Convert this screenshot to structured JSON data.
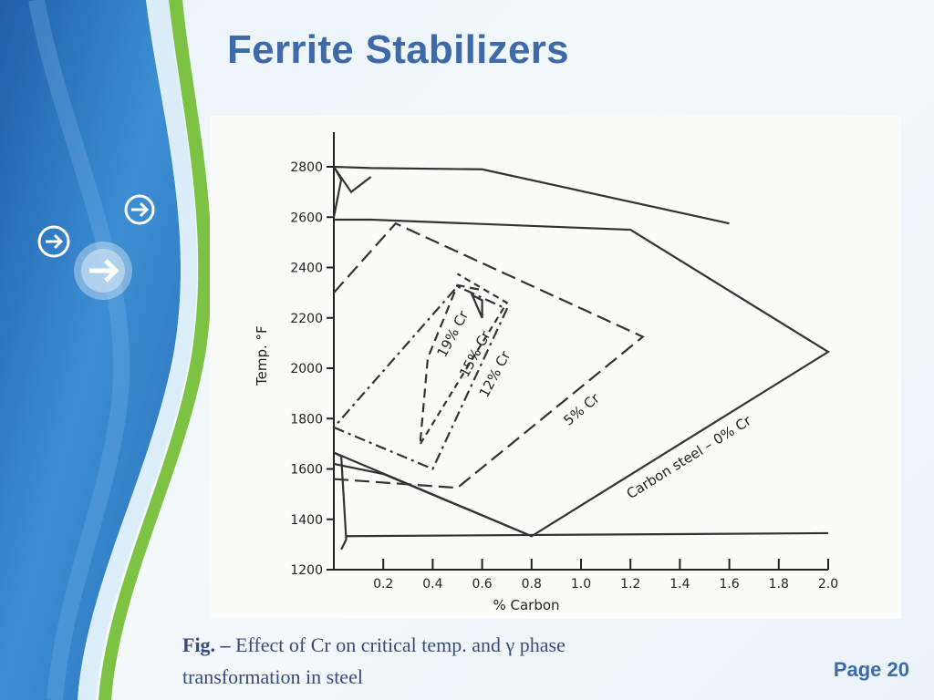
{
  "slide": {
    "title": "Ferrite Stabilizers",
    "caption_prefix": "Fig. –",
    "caption_line1": " Effect of Cr on critical temp. and γ phase",
    "caption_line2": "transformation in steel",
    "page_label": "Page 20"
  },
  "theme": {
    "title_color": "#3e6aaa",
    "side_blue": "#2f7cc4",
    "side_green": "#7dc242"
  },
  "side_icons": [
    "arrow-right-circle-icon",
    "arrow-right-circle-icon",
    "arrow-right-circle-icon"
  ],
  "chart_data": {
    "type": "diagram",
    "xlabel": "% Carbon",
    "ylabel": "Temp. °F",
    "x_ticks": [
      "0.2",
      "0.4",
      "0.6",
      "0.8",
      "1.0",
      "1.2",
      "1.4",
      "1.6",
      "1.8",
      "2.0"
    ],
    "y_ticks": [
      "1200",
      "1400",
      "1600",
      "1800",
      "2000",
      "2200",
      "2400",
      "2600",
      "2800"
    ],
    "xlim": [
      0,
      2.0
    ],
    "ylim": [
      1200,
      2800
    ],
    "series": [
      {
        "name": "Carbon steel – 0% Cr",
        "style": "solid",
        "points": [
          [
            0,
            1665
          ],
          [
            0.8,
            1333
          ],
          [
            2.0,
            2065
          ],
          [
            1.2,
            2550
          ],
          [
            0.15,
            2590
          ],
          [
            0,
            2590
          ]
        ]
      },
      {
        "name": "5% Cr",
        "style": "long-dash",
        "points": [
          [
            0,
            2300
          ],
          [
            0.25,
            2575
          ],
          [
            1.25,
            2125
          ],
          [
            0.5,
            1525
          ],
          [
            0,
            1560
          ]
        ]
      },
      {
        "name": "12% Cr",
        "style": "dash-dot",
        "points": [
          [
            0,
            1765
          ],
          [
            0.4,
            1600
          ],
          [
            0.7,
            2235
          ],
          [
            0.5,
            2325
          ],
          [
            0,
            1765
          ]
        ]
      },
      {
        "name": "15% Cr",
        "style": "short-dash",
        "points": [
          [
            0.35,
            1700
          ],
          [
            0.7,
            2260
          ],
          [
            0.5,
            2375
          ]
        ]
      },
      {
        "name": "19% Cr",
        "style": "dashed",
        "points": [
          [
            0.35,
            1710
          ],
          [
            0.38,
            2040
          ],
          [
            0.5,
            2330
          ],
          [
            0.6,
            2310
          ]
        ]
      }
    ],
    "curve_labels": [
      "Carbon steel – 0% Cr",
      "5% Cr",
      "12% Cr",
      "15% Cr",
      "19% Cr"
    ]
  }
}
